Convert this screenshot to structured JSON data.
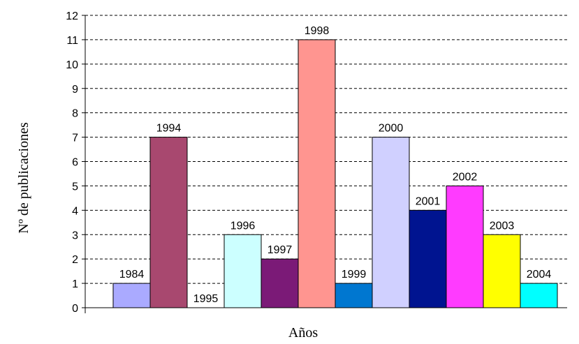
{
  "chart_data": {
    "type": "bar",
    "title": "",
    "xlabel": "Años",
    "ylabel": "Nº de publicaciones",
    "ylim": [
      0,
      12
    ],
    "y_ticks": [
      "0",
      "1",
      "2",
      "3",
      "4",
      "5",
      "6",
      "7",
      "8",
      "9",
      "10",
      "11",
      "12"
    ],
    "grid": "dashed horizontal",
    "legend": "none",
    "categories": [
      "1984",
      "1994",
      "1995",
      "1996",
      "1997",
      "1998",
      "1999",
      "2000",
      "2001",
      "2002",
      "2003",
      "2004"
    ],
    "values": [
      1,
      7,
      0,
      3,
      2,
      11,
      1,
      7,
      4,
      5,
      3,
      1
    ],
    "colors": [
      "#AAAAFF",
      "#A8486F",
      "#FFFFFF",
      "#CCFFFF",
      "#7B1A77",
      "#FF9590",
      "#0077D0",
      "#D0D0FF",
      "#001490",
      "#FF3BFF",
      "#FFFF00",
      "#00FFFF"
    ]
  }
}
